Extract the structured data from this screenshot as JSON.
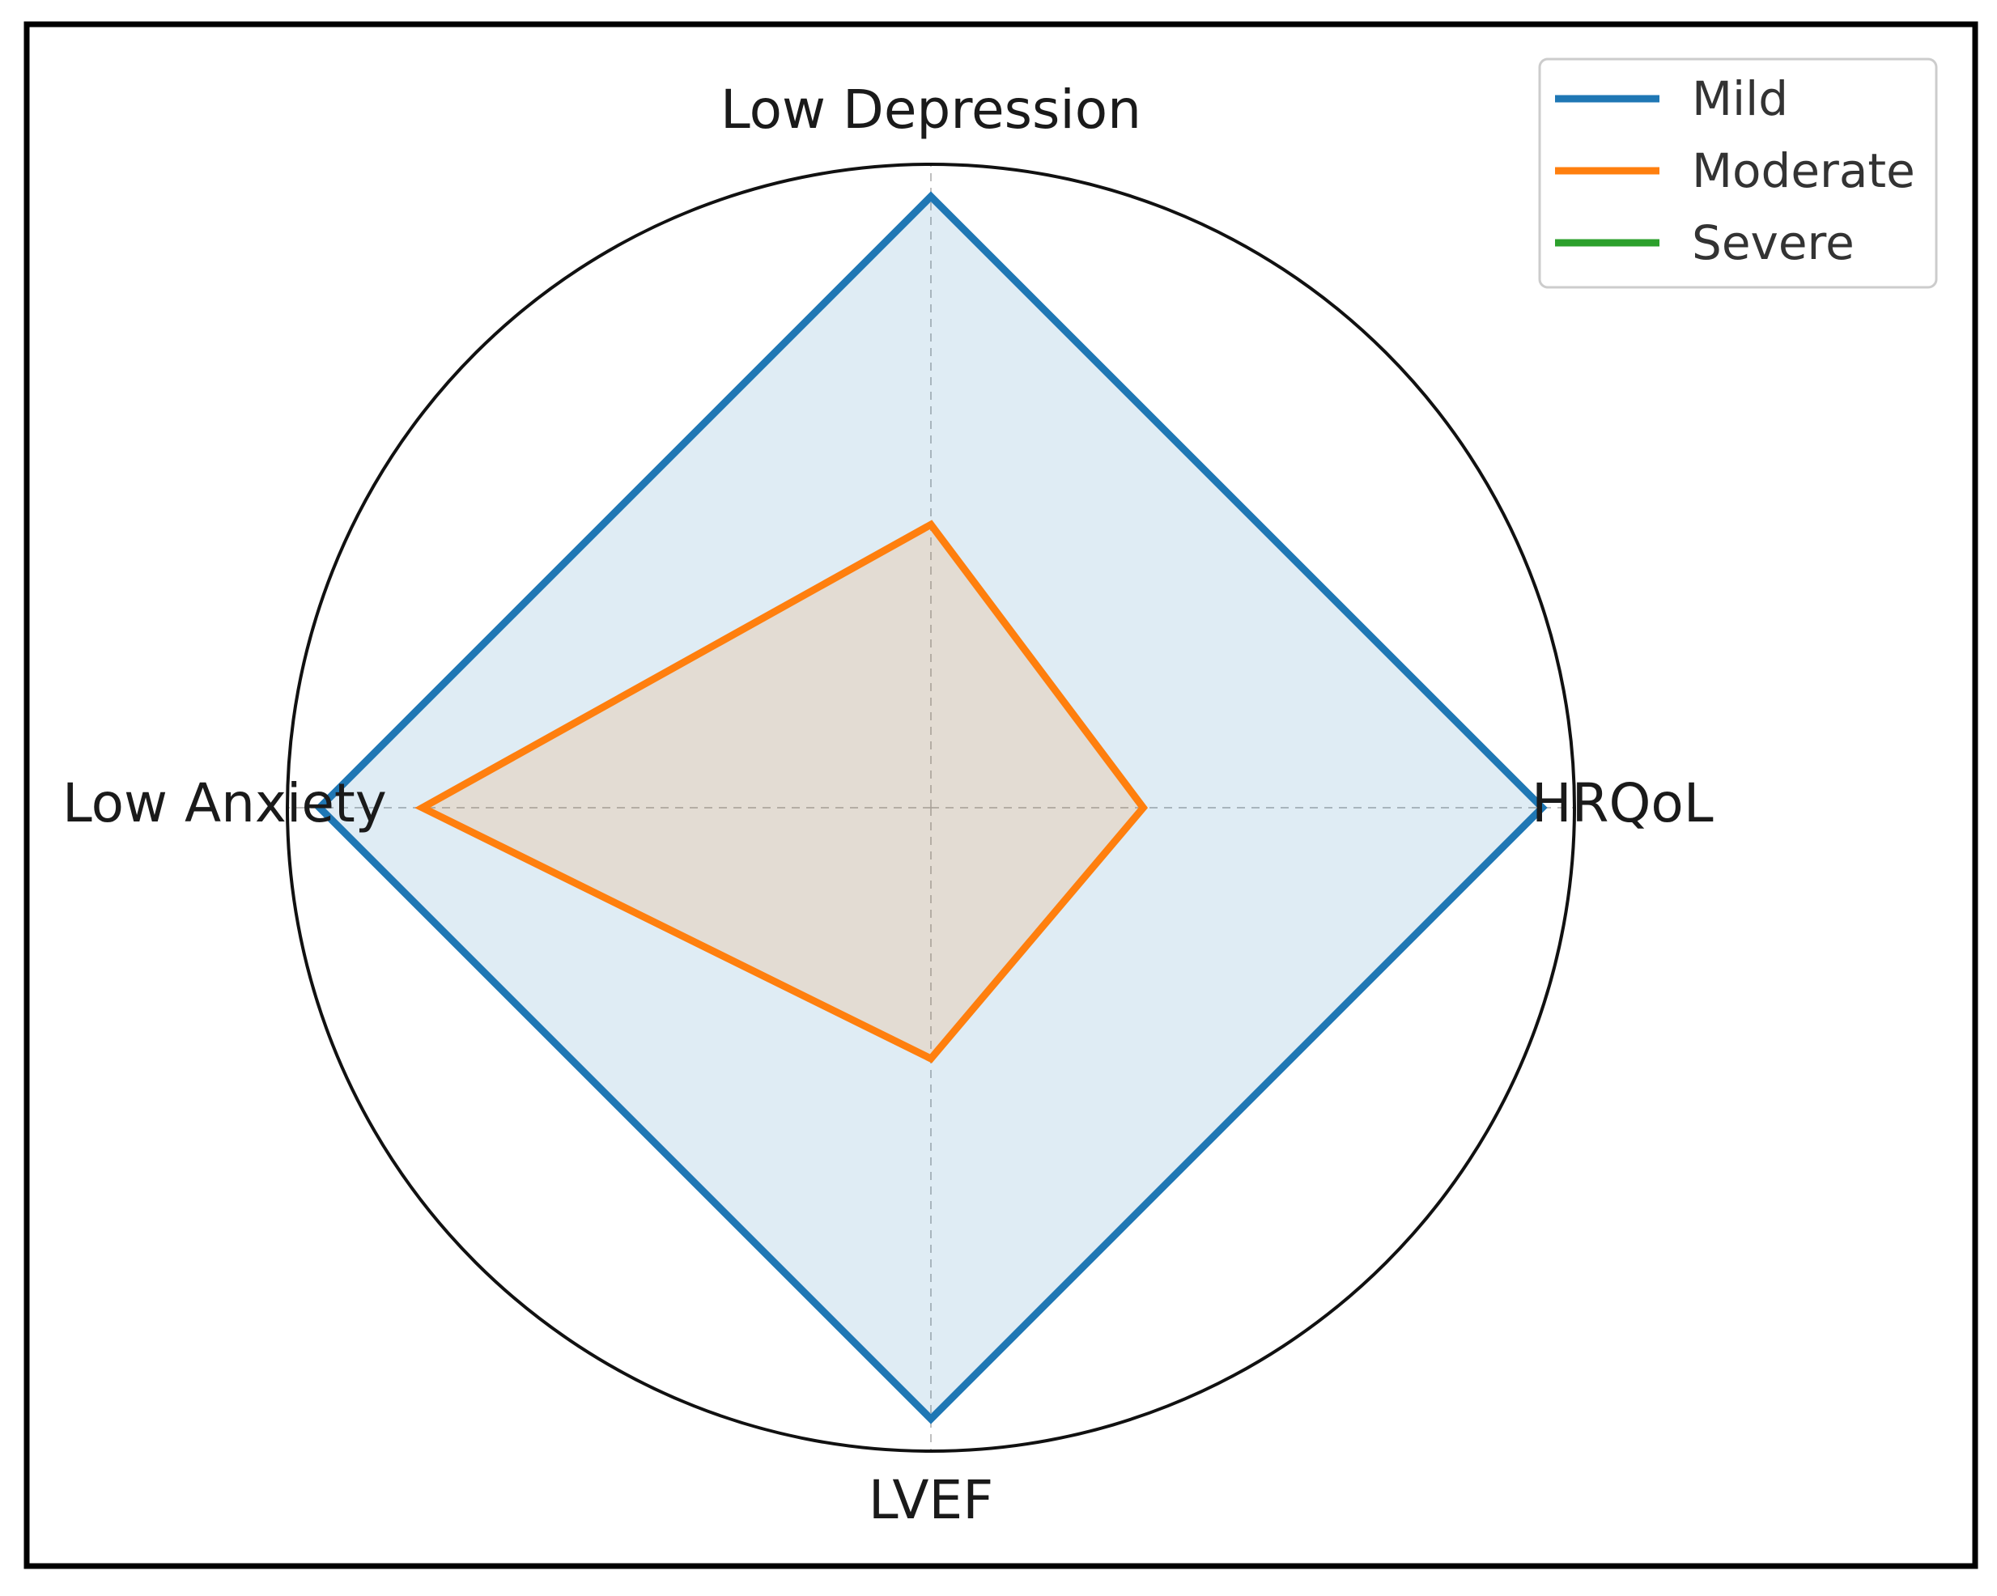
{
  "chart_data": {
    "type": "radar",
    "title": "",
    "axes": [
      "Low Depression",
      "HRQoL",
      "LVEF",
      "Low Anxiety"
    ],
    "rlim": [
      0,
      1
    ],
    "grid": true,
    "legend_position": "top-right",
    "series": [
      {
        "name": "Mild",
        "values": [
          0.95,
          0.95,
          0.95,
          0.95
        ],
        "color": "#1f77b4"
      },
      {
        "name": "Moderate",
        "values": [
          0.44,
          0.33,
          0.39,
          0.79
        ],
        "color": "#ff7f0e"
      },
      {
        "name": "Severe",
        "values": [
          0,
          0,
          0,
          0
        ],
        "color": "#2ca02c"
      }
    ]
  }
}
